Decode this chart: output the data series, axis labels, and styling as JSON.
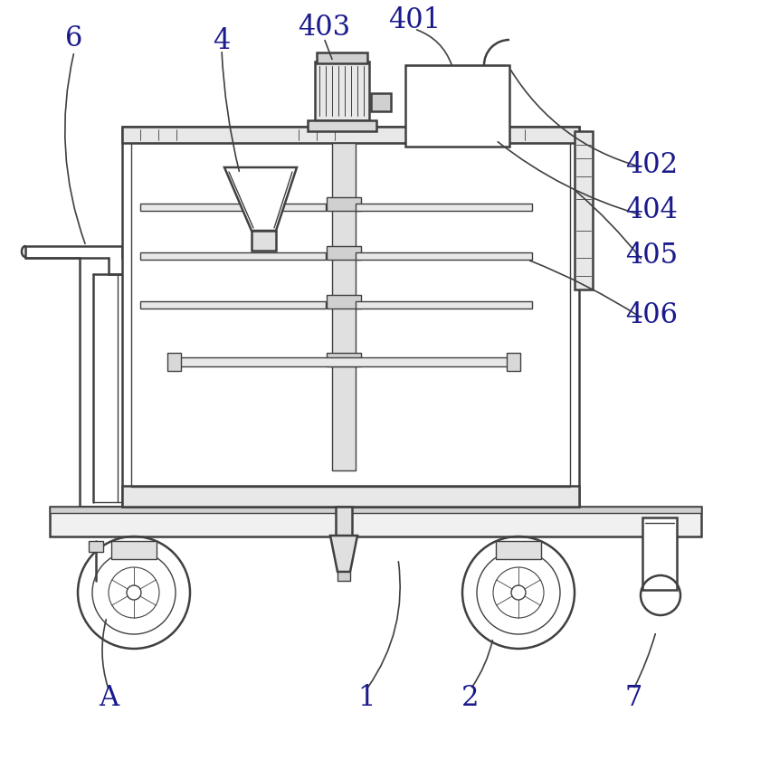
{
  "bg_color": "#ffffff",
  "line_color": "#404040",
  "label_color": "#1a1a8c",
  "lw_main": 1.8,
  "lw_thin": 1.0,
  "lw_leader": 1.2
}
